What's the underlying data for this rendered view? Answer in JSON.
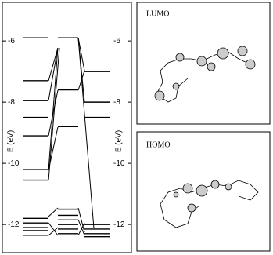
{
  "chart_data": {
    "type": "level-diagram",
    "ylabel": "E (eV)",
    "ylim": [
      -4.74,
      -12.92
    ],
    "yticks": [
      -6,
      -8,
      -10,
      -12
    ],
    "y2ticks": [
      -6,
      -8,
      -10,
      -12
    ],
    "series": [
      {
        "color": "#000000",
        "values": [
          -5.9,
          -7.3,
          -7.95,
          -8.5,
          -9.1,
          -10.2,
          -10.55,
          -11.8,
          -11.95,
          -12.1,
          -12.2,
          -12.35
        ]
      },
      {
        "color": "#000000",
        "values": [
          -5.9,
          -7.6,
          -8.8,
          -11.5,
          -11.7,
          -11.85,
          -12.0,
          -12.15,
          -12.3
        ]
      },
      {
        "color": "#000000",
        "values": [
          -7.0,
          -8.0,
          -8.5,
          -12.0,
          -12.15,
          -12.3,
          -12.4
        ]
      }
    ]
  },
  "panels": [
    {
      "label": "LUMO"
    },
    {
      "label": "HOMO"
    }
  ]
}
